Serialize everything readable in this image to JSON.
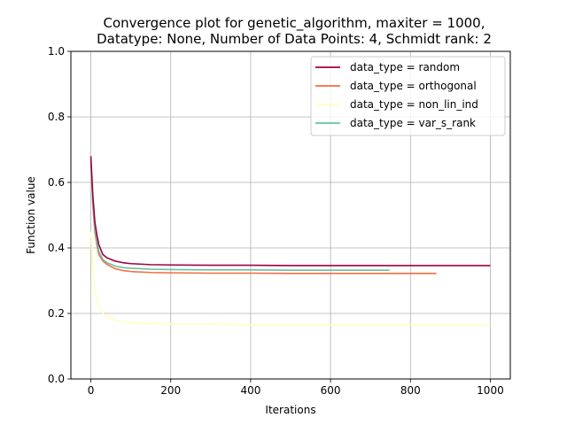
{
  "chart_data": {
    "type": "line",
    "title_line1": "Convergence plot for genetic_algorithm, maxiter = 1000,",
    "title_line2": "Datatype: None, Number of Data Points: 4, Schmidt rank: 2",
    "xlabel": "Iterations",
    "ylabel": "Function value",
    "xlim": [
      -50,
      1050
    ],
    "ylim": [
      0.0,
      1.0
    ],
    "xticks": [
      0,
      200,
      400,
      600,
      800,
      1000
    ],
    "yticks": [
      0.0,
      0.2,
      0.4,
      0.6,
      0.8,
      1.0
    ],
    "xtick_labels": [
      "0",
      "200",
      "400",
      "600",
      "800",
      "1000"
    ],
    "ytick_labels": [
      "0.0",
      "0.2",
      "0.4",
      "0.6",
      "0.8",
      "1.0"
    ],
    "grid": true,
    "legend_position": "top-right",
    "series": [
      {
        "name": "data_type = random",
        "color": "#9e0142",
        "x": [
          0,
          5,
          10,
          15,
          20,
          30,
          40,
          60,
          80,
          100,
          150,
          200,
          300,
          400,
          500,
          600,
          700,
          800,
          900,
          1000
        ],
        "y": [
          0.68,
          0.56,
          0.48,
          0.44,
          0.41,
          0.38,
          0.37,
          0.36,
          0.355,
          0.352,
          0.349,
          0.348,
          0.347,
          0.347,
          0.346,
          0.346,
          0.346,
          0.346,
          0.346,
          0.346
        ]
      },
      {
        "name": "data_type = orthogonal",
        "color": "#f46d43",
        "x": [
          0,
          5,
          10,
          15,
          20,
          30,
          40,
          60,
          80,
          100,
          150,
          200,
          300,
          400,
          500,
          600,
          700,
          800,
          865
        ],
        "y": [
          0.67,
          0.53,
          0.45,
          0.41,
          0.38,
          0.36,
          0.35,
          0.337,
          0.331,
          0.328,
          0.325,
          0.324,
          0.323,
          0.323,
          0.322,
          0.322,
          0.322,
          0.322,
          0.322
        ]
      },
      {
        "name": "data_type = non_lin_ind",
        "color": "#ffffbf",
        "x": [
          0,
          5,
          10,
          15,
          20,
          30,
          40,
          60,
          80,
          100,
          150,
          200,
          300,
          400,
          500,
          600,
          700,
          800,
          900,
          1000
        ],
        "y": [
          0.45,
          0.33,
          0.27,
          0.24,
          0.22,
          0.2,
          0.19,
          0.18,
          0.175,
          0.172,
          0.169,
          0.168,
          0.167,
          0.166,
          0.166,
          0.166,
          0.166,
          0.166,
          0.166,
          0.166
        ]
      },
      {
        "name": "data_type = var_s_rank",
        "color": "#66c2a5",
        "x": [
          0,
          5,
          10,
          15,
          20,
          30,
          40,
          60,
          80,
          100,
          150,
          200,
          300,
          400,
          500,
          600,
          700,
          748
        ],
        "y": [
          0.66,
          0.54,
          0.46,
          0.42,
          0.39,
          0.365,
          0.355,
          0.345,
          0.34,
          0.338,
          0.335,
          0.334,
          0.333,
          0.333,
          0.332,
          0.332,
          0.332,
          0.332
        ]
      }
    ]
  }
}
